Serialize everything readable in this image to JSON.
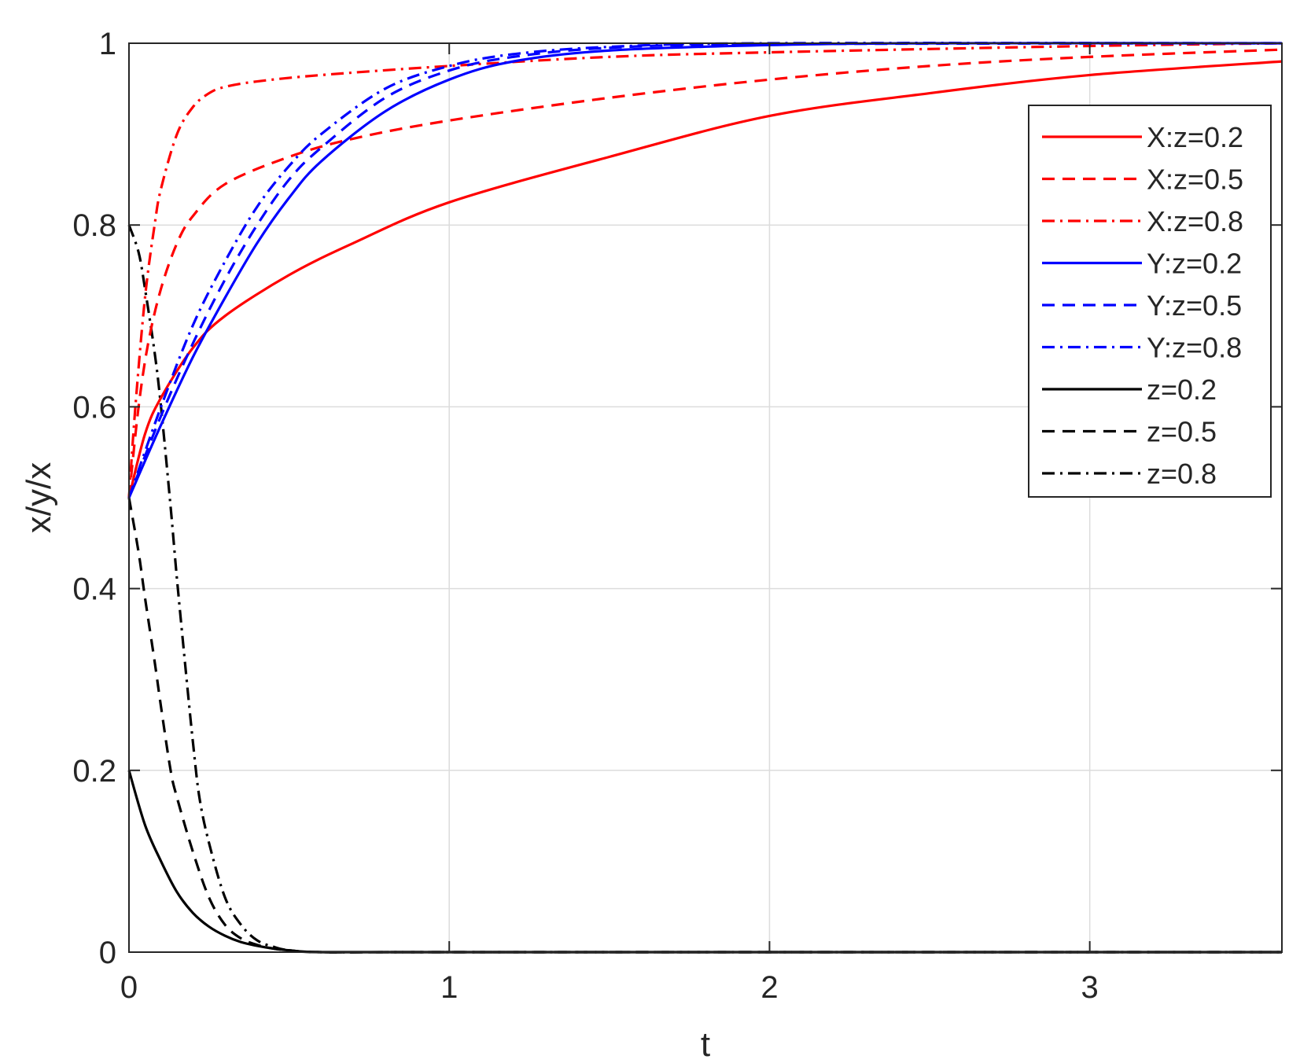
{
  "chart_data": {
    "type": "line",
    "title": "",
    "xlabel": "t",
    "ylabel": "x/y/x",
    "xlim": [
      0,
      3.6
    ],
    "ylim": [
      0,
      1
    ],
    "grid": true,
    "legend_position": "top-right",
    "x_ticks": [
      0,
      1,
      2,
      3
    ],
    "y_ticks": [
      0,
      0.2,
      0.4,
      0.6,
      0.8,
      1
    ],
    "x_tick_labels": [
      "0",
      "1",
      "2",
      "3"
    ],
    "y_tick_labels": [
      "0",
      "0.2",
      "0.4",
      "0.6",
      "0.8",
      "1"
    ],
    "series": [
      {
        "name": "X:z=0.2",
        "color": "#ff0000",
        "style": "solid",
        "x": [
          0,
          0.05,
          0.1,
          0.2,
          0.3,
          0.5,
          0.7,
          1.0,
          1.5,
          2.0,
          2.5,
          3.0,
          3.6
        ],
        "y": [
          0.5,
          0.57,
          0.61,
          0.665,
          0.7,
          0.745,
          0.78,
          0.825,
          0.875,
          0.92,
          0.945,
          0.965,
          0.98
        ]
      },
      {
        "name": "X:z=0.5",
        "color": "#ff0000",
        "style": "dashed",
        "x": [
          0,
          0.03,
          0.06,
          0.1,
          0.15,
          0.2,
          0.3,
          0.5,
          0.7,
          1.0,
          1.5,
          2.0,
          2.5,
          3.0,
          3.6
        ],
        "y": [
          0.5,
          0.6,
          0.67,
          0.73,
          0.78,
          0.81,
          0.845,
          0.875,
          0.895,
          0.915,
          0.94,
          0.96,
          0.975,
          0.985,
          0.993
        ]
      },
      {
        "name": "X:z=0.8",
        "color": "#ff0000",
        "style": "dashdot",
        "x": [
          0,
          0.02,
          0.05,
          0.08,
          0.1,
          0.15,
          0.2,
          0.25,
          0.3,
          0.4,
          0.6,
          1.0,
          1.5,
          2.0,
          3.0,
          3.6
        ],
        "y": [
          0.5,
          0.6,
          0.72,
          0.8,
          0.84,
          0.9,
          0.93,
          0.945,
          0.952,
          0.958,
          0.965,
          0.975,
          0.985,
          0.99,
          0.997,
          1.0
        ]
      },
      {
        "name": "Y:z=0.2",
        "color": "#0000ff",
        "style": "solid",
        "x": [
          0,
          0.1,
          0.2,
          0.3,
          0.4,
          0.5,
          0.6,
          0.8,
          1.0,
          1.2,
          1.5,
          2.0,
          2.5,
          3.6
        ],
        "y": [
          0.5,
          0.58,
          0.655,
          0.72,
          0.78,
          0.83,
          0.87,
          0.925,
          0.96,
          0.98,
          0.992,
          0.998,
          1.0,
          1.0
        ]
      },
      {
        "name": "Y:z=0.5",
        "color": "#0000ff",
        "style": "dashed",
        "x": [
          0,
          0.1,
          0.2,
          0.3,
          0.4,
          0.5,
          0.6,
          0.8,
          1.0,
          1.2,
          1.5,
          2.0,
          3.6
        ],
        "y": [
          0.5,
          0.59,
          0.67,
          0.74,
          0.8,
          0.85,
          0.885,
          0.94,
          0.97,
          0.985,
          0.995,
          0.999,
          1.0
        ]
      },
      {
        "name": "Y:z=0.8",
        "color": "#0000ff",
        "style": "dashdot",
        "x": [
          0,
          0.1,
          0.2,
          0.3,
          0.4,
          0.5,
          0.6,
          0.8,
          1.0,
          1.2,
          1.5,
          2.0,
          3.6
        ],
        "y": [
          0.5,
          0.6,
          0.69,
          0.76,
          0.82,
          0.865,
          0.9,
          0.95,
          0.975,
          0.988,
          0.996,
          1.0,
          1.0
        ]
      },
      {
        "name": "z=0.2",
        "color": "#000000",
        "style": "solid",
        "x": [
          0,
          0.05,
          0.1,
          0.15,
          0.2,
          0.25,
          0.3,
          0.35,
          0.4,
          0.45,
          0.5,
          0.6,
          1.0,
          2.0,
          3.6
        ],
        "y": [
          0.2,
          0.14,
          0.1,
          0.066,
          0.043,
          0.028,
          0.018,
          0.011,
          0.007,
          0.004,
          0.002,
          0.0,
          0.0,
          0.0,
          0.0
        ]
      },
      {
        "name": "z=0.5",
        "color": "#000000",
        "style": "dashed",
        "x": [
          0,
          0.03,
          0.05,
          0.08,
          0.1,
          0.13,
          0.15,
          0.2,
          0.25,
          0.3,
          0.35,
          0.4,
          0.45,
          0.5,
          0.6,
          1.0,
          3.6
        ],
        "y": [
          0.5,
          0.44,
          0.39,
          0.32,
          0.27,
          0.2,
          0.17,
          0.11,
          0.06,
          0.03,
          0.015,
          0.008,
          0.004,
          0.002,
          0.0,
          0.0,
          0.0
        ]
      },
      {
        "name": "z=0.8",
        "color": "#000000",
        "style": "dashdot",
        "x": [
          0,
          0.03,
          0.05,
          0.08,
          0.1,
          0.13,
          0.15,
          0.18,
          0.2,
          0.22,
          0.25,
          0.3,
          0.35,
          0.4,
          0.45,
          0.5,
          0.6,
          1.0,
          3.6
        ],
        "y": [
          0.8,
          0.77,
          0.73,
          0.66,
          0.6,
          0.49,
          0.41,
          0.3,
          0.23,
          0.17,
          0.12,
          0.06,
          0.03,
          0.013,
          0.006,
          0.002,
          0.0,
          0.0,
          0.0
        ]
      }
    ]
  }
}
